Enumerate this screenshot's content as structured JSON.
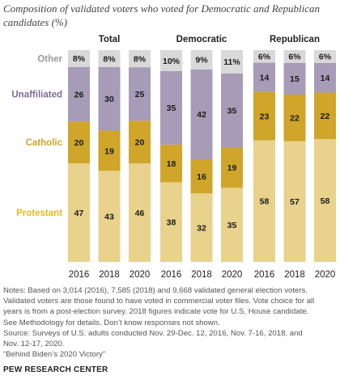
{
  "title": "Composition of validated voters who voted for Democratic and Republican candidates (%)",
  "chart_data": {
    "type": "bar",
    "stacked": true,
    "panels": [
      "Total",
      "Democratic",
      "Republican"
    ],
    "categories": [
      "2016",
      "2018",
      "2020"
    ],
    "series": [
      {
        "name": "Protestant",
        "color": "#e8d28c",
        "label_color": "#e6b91f",
        "values": {
          "Total": [
            47,
            43,
            46
          ],
          "Democratic": [
            38,
            32,
            35
          ],
          "Republican": [
            58,
            57,
            58
          ]
        }
      },
      {
        "name": "Catholic",
        "color": "#cfa52a",
        "label_color": "#cfa52a",
        "values": {
          "Total": [
            20,
            19,
            20
          ],
          "Democratic": [
            18,
            16,
            19
          ],
          "Republican": [
            23,
            22,
            22
          ]
        }
      },
      {
        "name": "Unaffiliated",
        "color": "#a79cb7",
        "label_color": "#7e6c96",
        "values": {
          "Total": [
            26,
            30,
            25
          ],
          "Democratic": [
            35,
            42,
            35
          ],
          "Republican": [
            14,
            15,
            14
          ]
        }
      },
      {
        "name": "Other",
        "color": "#d9d9d9",
        "label_color": "#9a9a9a",
        "values": {
          "Total": [
            8,
            8,
            8
          ],
          "Democratic": [
            10,
            9,
            11
          ],
          "Republican": [
            6,
            6,
            6
          ]
        }
      }
    ],
    "value_labels": {
      "Total": [
        [
          "47",
          "20",
          "26",
          "8%"
        ],
        [
          "43",
          "19",
          "30",
          "8%"
        ],
        [
          "46",
          "20",
          "25",
          "8%"
        ]
      ],
      "Democratic": [
        [
          "38",
          "18",
          "35",
          "10%"
        ],
        [
          "32",
          "16",
          "42",
          "9%"
        ],
        [
          "35",
          "19",
          "35",
          "11%"
        ]
      ],
      "Republican": [
        [
          "58",
          "23",
          "14",
          "6%"
        ],
        [
          "57",
          "22",
          "15",
          "6%"
        ],
        [
          "58",
          "22",
          "14",
          "6%"
        ]
      ]
    },
    "ylim": [
      0,
      100
    ]
  },
  "notes": [
    "Notes: Based on 3,014 (2016), 7,585 (2018) and 9,668 validated general election voters.",
    "Validated voters are those found to have voted in commercial voter files. Vote choice for all",
    "years is from a post-election survey. 2018 figures indicate vote for U.S. House candidate.",
    "See Methodology for details. Don’t know responses not shown.",
    "Source: Surveys of U.S. adults conducted Nov. 29-Dec. 12, 2016, Nov. 7-16, 2018, and",
    "Nov. 12-17, 2020.",
    "“Behind Biden’s 2020 Victory”"
  ],
  "source_label": "PEW RESEARCH CENTER"
}
